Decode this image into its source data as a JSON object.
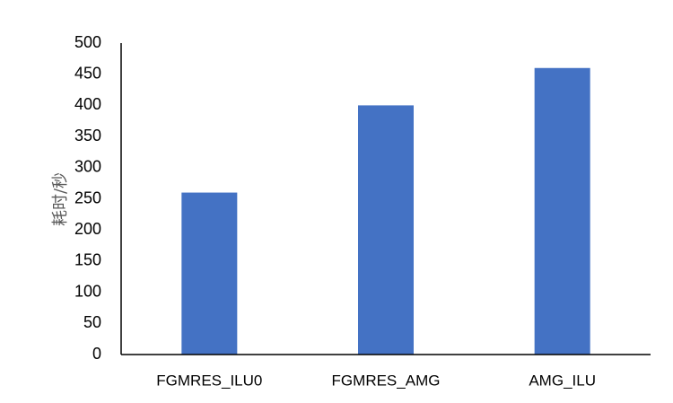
{
  "chart_data": {
    "type": "bar",
    "title": "",
    "xlabel": "",
    "ylabel": "耗时/秒",
    "categories": [
      "FGMRES_ILU0",
      "FGMRES_AMG",
      "AMG_ILU"
    ],
    "values": [
      260,
      400,
      460
    ],
    "ylim": [
      0,
      500
    ],
    "yticks": [
      0,
      50,
      100,
      150,
      200,
      250,
      300,
      350,
      400,
      450,
      500
    ],
    "grid": false,
    "legend": "none",
    "bar_color": "#4472C4",
    "axis_color": "#000000",
    "axis_title_color": "#595959"
  }
}
